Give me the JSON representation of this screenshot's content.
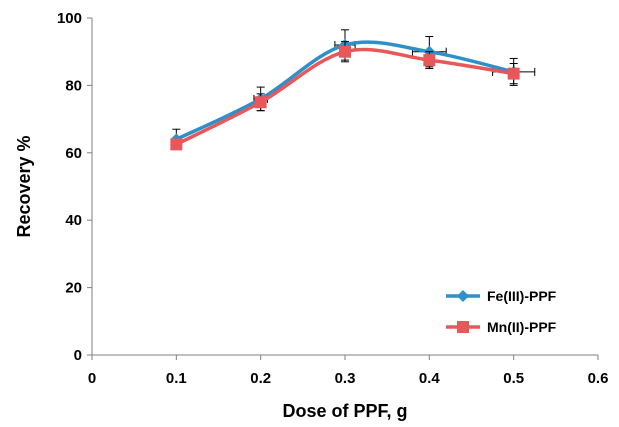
{
  "chart_data": {
    "type": "line",
    "title": "",
    "xlabel": "Dose of PPF, g",
    "ylabel": "Recovery %",
    "xlim": [
      0,
      0.6
    ],
    "ylim": [
      0,
      100
    ],
    "x_ticks": [
      "0",
      "0.1",
      "0.2",
      "0.3",
      "0.4",
      "0.5",
      "0.6"
    ],
    "y_ticks": [
      "0",
      "20",
      "40",
      "60",
      "80",
      "100"
    ],
    "grid": false,
    "smoothed": true,
    "legend_position": "bottom-right",
    "series": [
      {
        "name": "Fe(III)-PPF",
        "color": "#2e8fc9",
        "marker": "diamond",
        "x": [
          0.1,
          0.2,
          0.3,
          0.4,
          0.5
        ],
        "y": [
          64,
          76,
          92,
          90,
          84
        ],
        "y_error": [
          3,
          3.5,
          4.5,
          4.5,
          4
        ],
        "x_error": [
          0,
          0.008,
          0.012,
          0.02,
          0.025
        ]
      },
      {
        "name": "Mn(II)-PPF",
        "color": "#e8585a",
        "marker": "square",
        "x": [
          0.1,
          0.2,
          0.3,
          0.4,
          0.5
        ],
        "y": [
          62.5,
          75,
          90,
          87.5,
          83.5
        ],
        "y_error": [
          1,
          2.5,
          3,
          2.5,
          3
        ],
        "x_error": [
          0,
          0,
          0,
          0,
          0
        ]
      }
    ]
  }
}
